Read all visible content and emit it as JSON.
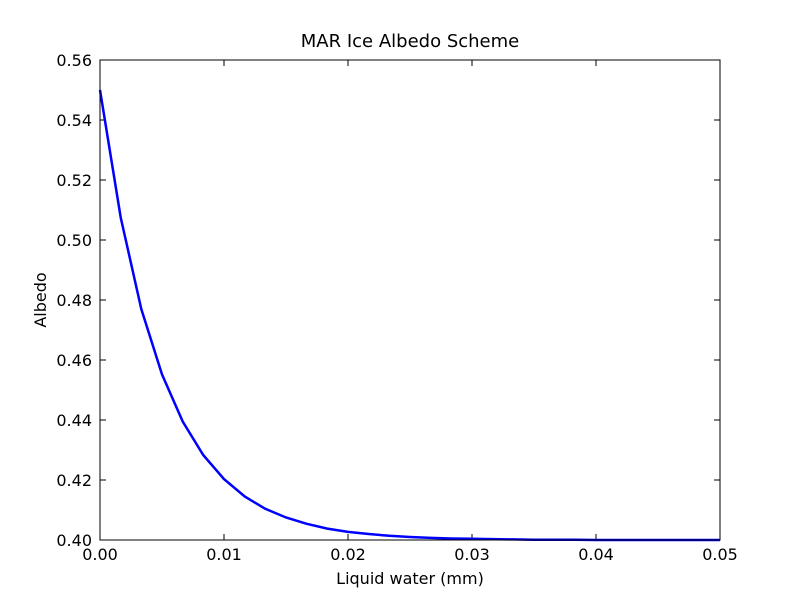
{
  "chart_data": {
    "type": "line",
    "title": "MAR Ice Albedo Scheme",
    "x_label": "Liquid water (mm)",
    "y_label": "Albedo",
    "x": [
      0,
      0.00167,
      0.00333,
      0.005,
      0.00667,
      0.00833,
      0.01,
      0.01167,
      0.01333,
      0.015,
      0.01667,
      0.01833,
      0.02,
      0.02167,
      0.02333,
      0.025,
      0.02667,
      0.02833,
      0.03,
      0.03167,
      0.03333,
      0.035,
      0.03667,
      0.03833,
      0.04,
      0.04167,
      0.04333,
      0.045,
      0.04667,
      0.04833,
      0.05
    ],
    "series": [
      {
        "name": "Albedo",
        "color": "#0000ff",
        "values": [
          0.55,
          0.5075,
          0.477,
          0.4552,
          0.4395,
          0.4283,
          0.4203,
          0.4145,
          0.4104,
          0.4075,
          0.4054,
          0.4038,
          0.4027,
          0.402,
          0.4014,
          0.401,
          0.4007,
          0.4005,
          0.4004,
          0.4003,
          0.4002,
          0.4001,
          0.4001,
          0.4001,
          0.4,
          0.4,
          0.4,
          0.4,
          0.4,
          0.4,
          0.4
        ]
      }
    ],
    "xlim": [
      0,
      0.05
    ],
    "xticks": [
      {
        "value": 0,
        "label": "0.00"
      },
      {
        "value": 0.01,
        "label": "0.01"
      },
      {
        "value": 0.02,
        "label": "0.02"
      },
      {
        "value": 0.03,
        "label": "0.03"
      },
      {
        "value": 0.04,
        "label": "0.04"
      },
      {
        "value": 0.05,
        "label": "0.05"
      }
    ],
    "ylim": [
      0.4,
      0.56
    ],
    "yticks": [
      {
        "value": 0.4,
        "label": "0.40"
      },
      {
        "value": 0.42,
        "label": "0.42"
      },
      {
        "value": 0.44,
        "label": "0.44"
      },
      {
        "value": 0.46,
        "label": "0.46"
      },
      {
        "value": 0.48,
        "label": "0.48"
      },
      {
        "value": 0.5,
        "label": "0.50"
      },
      {
        "value": 0.52,
        "label": "0.52"
      },
      {
        "value": 0.54,
        "label": "0.54"
      },
      {
        "value": 0.56,
        "label": "0.56"
      }
    ],
    "grid": false
  }
}
